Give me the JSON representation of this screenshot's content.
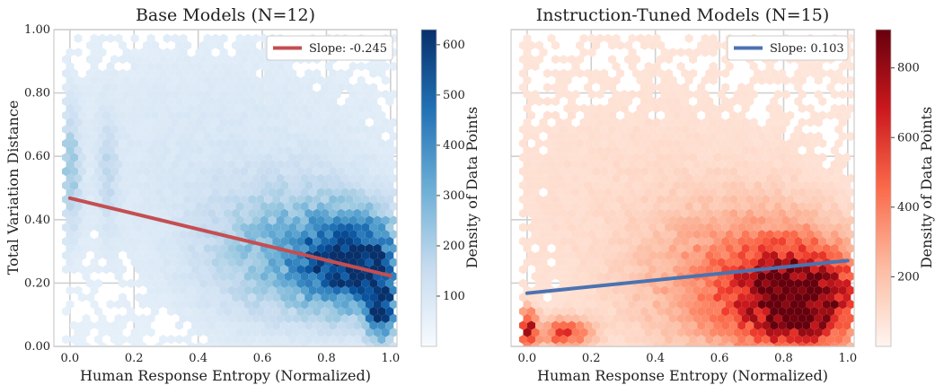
{
  "chart_data": [
    {
      "type": "hexbin",
      "title": "Base Models (N=12)",
      "xlabel": "Human Response Entropy (Normalized)",
      "ylabel": "Total Variation Distance",
      "xlim": [
        -0.05,
        1.02
      ],
      "ylim": [
        0.0,
        1.0
      ],
      "xticks": [
        0.0,
        0.2,
        0.4,
        0.6,
        0.8,
        1.0
      ],
      "xtick_labels": [
        "0.0",
        "0.2",
        "0.4",
        "0.6",
        "0.8",
        "1.0"
      ],
      "yticks": [
        0.0,
        0.2,
        0.4,
        0.6,
        0.8,
        1.0
      ],
      "ytick_labels": [
        "0.00",
        "0.20",
        "0.40",
        "0.60",
        "0.80",
        "1.00"
      ],
      "grid": true,
      "colormap": "Blues",
      "colorbar": {
        "label": "Density of Data Points",
        "range": [
          0,
          630
        ],
        "ticks": [
          100,
          200,
          300,
          400,
          500,
          600
        ],
        "tick_labels": [
          "100",
          "200",
          "300",
          "400",
          "500",
          "600"
        ]
      },
      "regression": {
        "name": "Slope: -0.245",
        "slope": -0.245,
        "x": [
          0.0,
          1.0
        ],
        "y": [
          0.468,
          0.223
        ],
        "color": "#c44e52"
      },
      "legend_position": "upper right",
      "density_clusters": [
        {
          "x": 0.88,
          "y": 0.27,
          "sx": 0.1,
          "sy": 0.09,
          "weight": 1.0
        },
        {
          "x": 0.97,
          "y": 0.12,
          "sx": 0.03,
          "sy": 0.07,
          "weight": 0.9
        },
        {
          "x": 0.7,
          "y": 0.3,
          "sx": 0.18,
          "sy": 0.14,
          "weight": 0.35
        },
        {
          "x": 0.0,
          "y": 0.55,
          "sx": 0.02,
          "sy": 0.12,
          "weight": 0.25
        },
        {
          "x": 0.12,
          "y": 0.55,
          "sx": 0.02,
          "sy": 0.12,
          "weight": 0.12
        },
        {
          "x": 0.45,
          "y": 0.6,
          "sx": 0.4,
          "sy": 0.25,
          "weight": 0.05
        }
      ]
    },
    {
      "type": "hexbin",
      "title": "Instruction-Tuned Models (N=15)",
      "xlabel": "Human Response Entropy (Normalized)",
      "ylabel": "",
      "xlim": [
        -0.05,
        1.02
      ],
      "ylim": [
        0.0,
        1.0
      ],
      "xticks": [
        0.0,
        0.2,
        0.4,
        0.6,
        0.8,
        1.0
      ],
      "xtick_labels": [
        "0.0",
        "0.2",
        "0.4",
        "0.6",
        "0.8",
        "1.0"
      ],
      "yticks": [
        0.0,
        0.2,
        0.4,
        0.6,
        0.8,
        1.0
      ],
      "ytick_labels": [],
      "grid": true,
      "colormap": "Reds",
      "colorbar": {
        "label": "Density of Data Points",
        "range": [
          0,
          910
        ],
        "ticks": [
          200,
          400,
          600,
          800
        ],
        "tick_labels": [
          "200",
          "400",
          "600",
          "800"
        ]
      },
      "regression": {
        "name": "Slope: 0.103",
        "slope": 0.103,
        "x": [
          0.0,
          1.0
        ],
        "y": [
          0.168,
          0.271
        ],
        "color": "#4c72b0"
      },
      "legend_position": "upper right",
      "density_clusters": [
        {
          "x": 0.85,
          "y": 0.15,
          "sx": 0.12,
          "sy": 0.1,
          "weight": 1.0
        },
        {
          "x": 0.7,
          "y": 0.2,
          "sx": 0.2,
          "sy": 0.15,
          "weight": 0.35
        },
        {
          "x": 0.0,
          "y": 0.05,
          "sx": 0.02,
          "sy": 0.04,
          "weight": 0.8
        },
        {
          "x": 0.12,
          "y": 0.04,
          "sx": 0.05,
          "sy": 0.03,
          "weight": 0.5
        },
        {
          "x": 0.4,
          "y": 0.45,
          "sx": 0.4,
          "sy": 0.3,
          "weight": 0.04
        }
      ]
    }
  ]
}
